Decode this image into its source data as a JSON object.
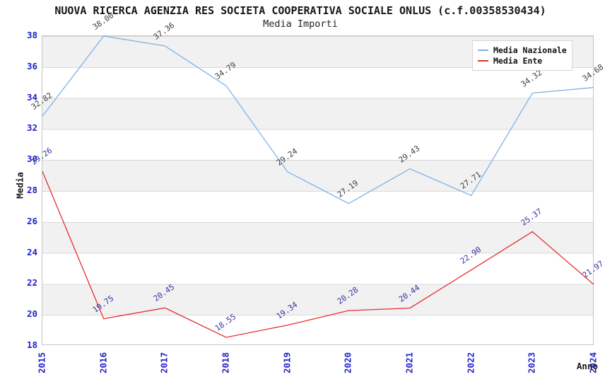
{
  "header": {
    "title": "NUOVA RICERCA AGENZIA RES SOCIETA COOPERATIVA SOCIALE ONLUS (c.f.00358530434)",
    "subtitle": "Media Importi"
  },
  "legend": {
    "items": [
      {
        "label": "Media Nazionale",
        "color": "#7fb2e5"
      },
      {
        "label": "Media Ente",
        "color": "#e62e2e"
      }
    ]
  },
  "chart_data": {
    "type": "line",
    "title": "NUOVA RICERCA AGENZIA RES SOCIETA COOPERATIVA SOCIALE ONLUS (c.f.00358530434)",
    "subtitle": "Media Importi",
    "xlabel": "Anno",
    "ylabel": "Media",
    "x": [
      "2015",
      "2016",
      "2017",
      "2018",
      "2019",
      "2020",
      "2021",
      "2022",
      "2023",
      "2024"
    ],
    "series": [
      {
        "name": "Media Nazionale",
        "color": "#7fb2e5",
        "label_color": "#3f3f3f",
        "values": [
          32.82,
          38.0,
          37.36,
          34.79,
          29.24,
          27.19,
          29.43,
          27.71,
          34.32,
          34.68
        ]
      },
      {
        "name": "Media Ente",
        "color": "#e62e2e",
        "label_color": "#3535a5",
        "values": [
          29.26,
          19.75,
          20.45,
          18.55,
          19.34,
          20.28,
          20.44,
          22.9,
          25.37,
          21.97
        ]
      }
    ],
    "ylim": [
      18,
      38
    ],
    "ytick_step": 2,
    "tick_color": "#2222cc",
    "grid": "horizontal-bands",
    "legend_position": "top-right",
    "value_label_decimals": 2
  }
}
